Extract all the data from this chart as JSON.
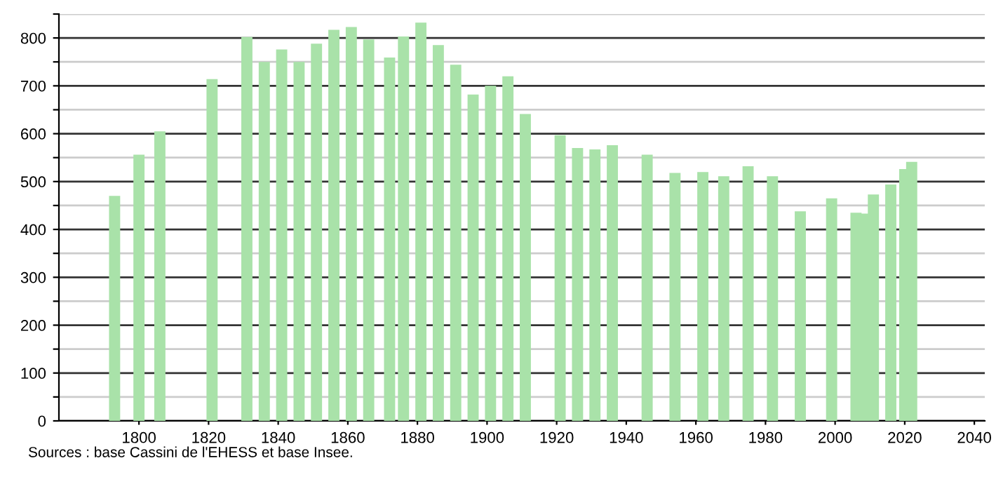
{
  "chart_data": {
    "type": "bar",
    "color": "#a9e2a9",
    "x": [
      1793,
      1800,
      1806,
      1821,
      1831,
      1836,
      1841,
      1846,
      1851,
      1856,
      1861,
      1866,
      1872,
      1876,
      1881,
      1886,
      1891,
      1896,
      1901,
      1906,
      1911,
      1921,
      1926,
      1931,
      1936,
      1946,
      1954,
      1962,
      1968,
      1975,
      1982,
      1990,
      1999,
      2006,
      2008,
      2011,
      2016,
      2020,
      2022
    ],
    "values": [
      470,
      556,
      605,
      714,
      802,
      750,
      776,
      750,
      788,
      817,
      823,
      797,
      759,
      803,
      832,
      785,
      744,
      682,
      700,
      720,
      641,
      597,
      570,
      567,
      576,
      556,
      518,
      520,
      511,
      532,
      511,
      438,
      465,
      435,
      433,
      473,
      494,
      526,
      541
    ],
    "xlim": [
      1777,
      2043
    ],
    "xticks": [
      1800,
      1820,
      1840,
      1860,
      1880,
      1900,
      1920,
      1940,
      1960,
      1980,
      2000,
      2020,
      2040
    ],
    "ylim": [
      0,
      850
    ],
    "yticks": [
      0,
      {
        "value": 50,
        "label": null
      },
      100,
      {
        "value": 150,
        "label": null
      },
      200,
      {
        "value": 250,
        "label": null
      },
      300,
      {
        "value": 350,
        "label": null
      },
      400,
      {
        "value": 450,
        "label": null
      },
      500,
      {
        "value": 550,
        "label": null
      },
      600,
      {
        "value": 650,
        "label": null
      },
      700,
      {
        "value": 750,
        "label": null
      },
      800,
      {
        "value": 850,
        "label": null
      }
    ],
    "grid": "y",
    "annotations": [
      "Sources : base Cassini de l'EHESS et base Insee."
    ]
  }
}
